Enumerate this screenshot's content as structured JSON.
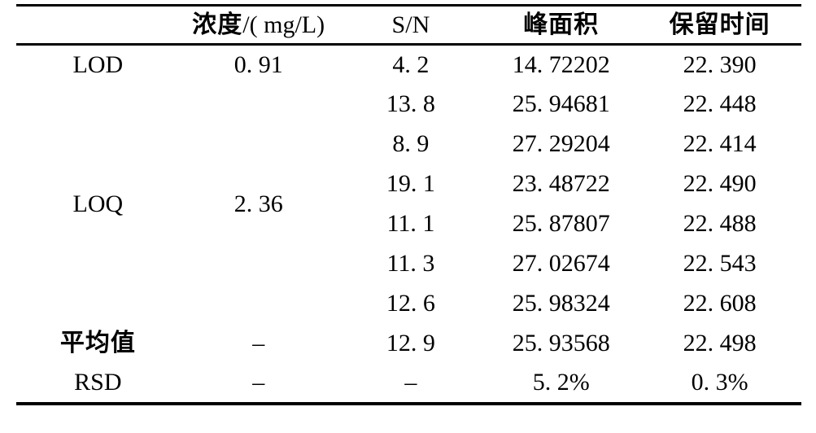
{
  "page": {
    "background_color": "#ffffff",
    "text_color": "#000000",
    "border_color": "#000000"
  },
  "table": {
    "headers": {
      "row_label": "",
      "concentration_cn": "浓度",
      "concentration_unit": "/( mg/L)",
      "sn": "S/N",
      "peak_area": "峰面积",
      "retention_time": "保留时间"
    },
    "row_labels": {
      "lod": "LOD",
      "loq": "LOQ",
      "mean": "平均值",
      "rsd": "RSD"
    },
    "concentrations": {
      "lod": "0. 91",
      "loq": "2. 36",
      "mean": "–",
      "rsd": "–"
    },
    "measurements": [
      {
        "sn": "4. 2",
        "peak_area": "14. 72202",
        "retention_time": "22. 390"
      },
      {
        "sn": "13. 8",
        "peak_area": "25. 94681",
        "retention_time": "22. 448"
      },
      {
        "sn": "8. 9",
        "peak_area": "27. 29204",
        "retention_time": "22. 414"
      },
      {
        "sn": "19. 1",
        "peak_area": "23. 48722",
        "retention_time": "22. 490"
      },
      {
        "sn": "11. 1",
        "peak_area": "25. 87807",
        "retention_time": "22. 488"
      },
      {
        "sn": "11. 3",
        "peak_area": "27. 02674",
        "retention_time": "22. 543"
      },
      {
        "sn": "12. 6",
        "peak_area": "25. 98324",
        "retention_time": "22. 608"
      },
      {
        "sn": "12. 9",
        "peak_area": "25. 93568",
        "retention_time": "22. 498"
      }
    ],
    "rsd_row": {
      "sn": "–",
      "peak_area": "5. 2%",
      "retention_time": "0. 3%"
    }
  }
}
